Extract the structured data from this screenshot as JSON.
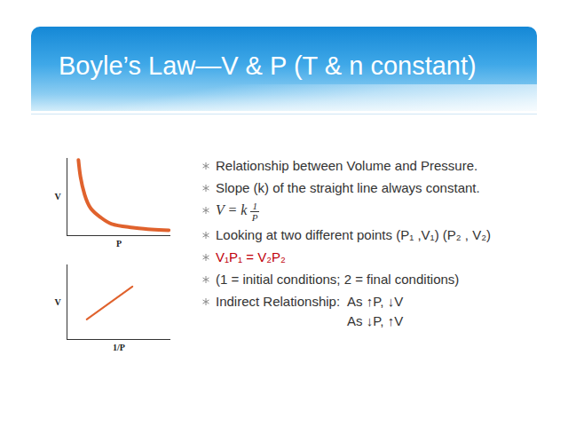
{
  "title": "Boyle’s Law—V & P (T & n constant)",
  "bullets": [
    {
      "text": "Relationship between Volume and Pressure."
    },
    {
      "text": "Slope (k) of the straight line always constant."
    },
    {
      "formula": {
        "left": "V = k",
        "numerator": "1",
        "denominator": "P"
      }
    },
    {
      "text": "Looking at two different points (P₁ ,V₁) (P₂ , V₂)"
    },
    {
      "text": "V₁P₁ = V₂P₂",
      "color": "#c0000a"
    },
    {
      "text": "(1 = initial conditions; 2 = final conditions)"
    },
    {
      "label": "Indirect Relationship:",
      "lines": [
        "As ↑P, ↓V",
        "As ↓P, ↑V"
      ]
    }
  ],
  "chart_data": [
    {
      "type": "line",
      "xlabel": "P",
      "ylabel": "V",
      "x": [
        1.1,
        1.3,
        1.7,
        2.3,
        3.2,
        4.3,
        6.0,
        8.1,
        9.8
      ],
      "values": [
        9.8,
        7.6,
        5.3,
        3.5,
        2.4,
        1.5,
        1.1,
        0.8,
        0.7
      ],
      "color": "#e0622d",
      "xlim": [
        0,
        10
      ],
      "ylim": [
        0,
        10
      ],
      "xticks": [],
      "yticks": [],
      "tick_labels": false
    },
    {
      "type": "line",
      "xlabel": "1/P",
      "ylabel": "V",
      "x": [
        1.9,
        6.3
      ],
      "values": [
        2.7,
        7.1
      ],
      "color": "#e0622d",
      "xlim": [
        0,
        10
      ],
      "ylim": [
        0,
        10
      ],
      "xticks": [],
      "yticks": [],
      "tick_labels": false
    }
  ]
}
